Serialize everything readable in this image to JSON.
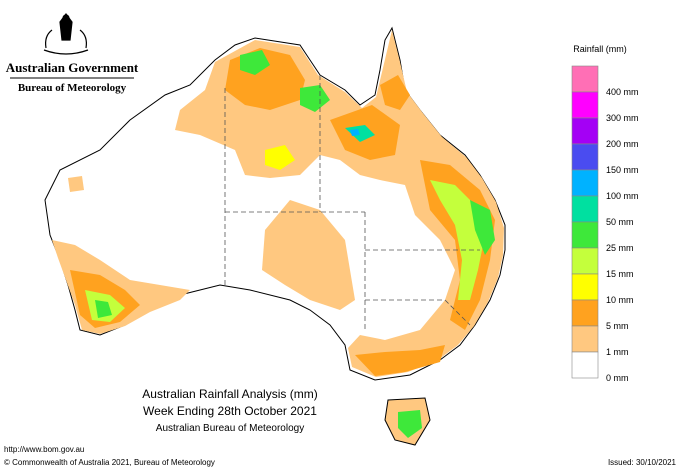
{
  "header": {
    "government": "Australian Government",
    "agency": "Bureau of Meteorology"
  },
  "legend": {
    "title": "Rainfall (mm)",
    "items": [
      {
        "label": "400 mm",
        "color": "#ff6fb5"
      },
      {
        "label": "300 mm",
        "color": "#ff00ff"
      },
      {
        "label": "200 mm",
        "color": "#a400f5"
      },
      {
        "label": "150 mm",
        "color": "#4a4cf0"
      },
      {
        "label": "100 mm",
        "color": "#00b2ff"
      },
      {
        "label": "50 mm",
        "color": "#00e0a0"
      },
      {
        "label": "25 mm",
        "color": "#3ee83a"
      },
      {
        "label": "15 mm",
        "color": "#c4ff3c"
      },
      {
        "label": "10 mm",
        "color": "#ffff00"
      },
      {
        "label": "5 mm",
        "color": "#ffa21f"
      },
      {
        "label": "1 mm",
        "color": "#ffc880"
      },
      {
        "label": "0 mm",
        "color": "#ffffff"
      }
    ]
  },
  "caption": {
    "title": "Australian Rainfall Analysis (mm)",
    "period": "Week Ending 28th October 2021",
    "source": "Australian Bureau of Meteorology"
  },
  "footer": {
    "url": "http://www.bom.gov.au",
    "copyright": "© Commonwealth of Australia 2021, Bureau of Meteorology",
    "issued": "Issued: 30/10/2021"
  }
}
